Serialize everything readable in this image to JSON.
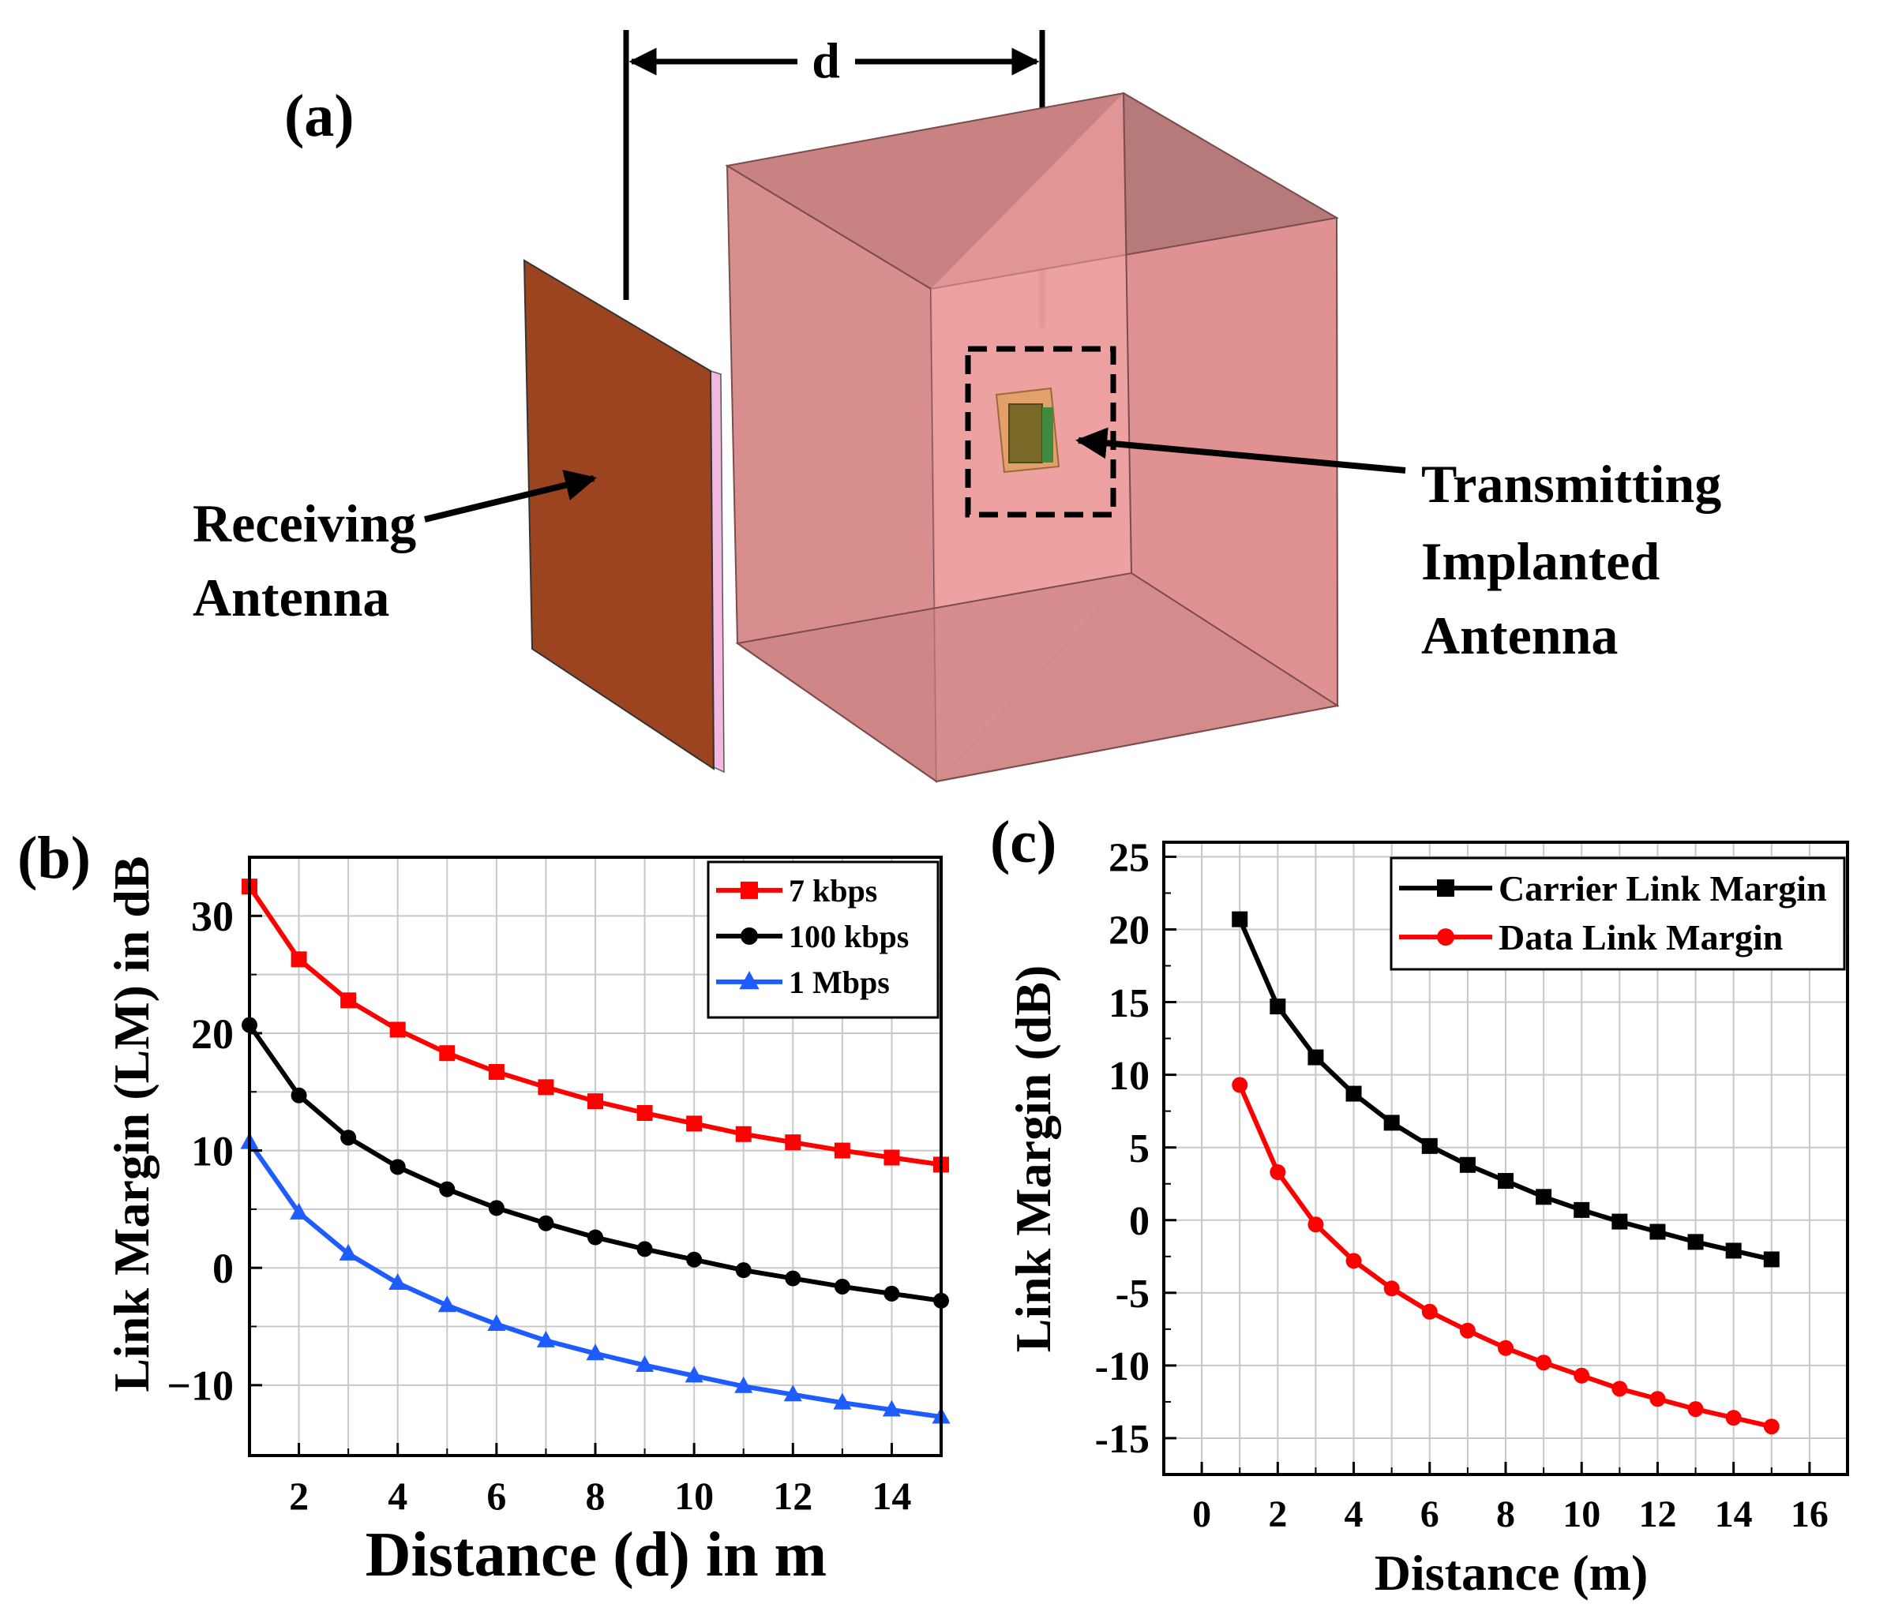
{
  "panel_a": {
    "label": "(a)",
    "distance_label": "d",
    "receiving_label_line1": "Receiving",
    "receiving_label_line2": "Antenna",
    "transmitting_label_line1": "Transmitting",
    "transmitting_label_line2": "Implanted",
    "transmitting_label_line3": "Antenna",
    "colors": {
      "receiver_front": "#9c4420",
      "receiver_edge": "#f2b8e0",
      "tissue_box": "#e59a9a",
      "tissue_inner": "#f4a5a5"
    }
  },
  "chart_data": [
    {
      "type": "line",
      "panel_label": "(b)",
      "title": "",
      "xlabel": "Distance (d) in m",
      "ylabel": "Link Margin (LM) in dB",
      "xlim": [
        1,
        15
      ],
      "ylim": [
        -16,
        35
      ],
      "xticks": [
        2,
        4,
        6,
        8,
        10,
        12,
        14
      ],
      "yticks": [
        -10,
        0,
        10,
        20,
        30
      ],
      "ytick_labels": [
        "−10",
        "0",
        "10",
        "20",
        "30"
      ],
      "grid": true,
      "legend_position": "top-right",
      "x": [
        1,
        2,
        3,
        4,
        5,
        6,
        7,
        8,
        9,
        10,
        11,
        12,
        13,
        14,
        15
      ],
      "series": [
        {
          "name": "7 kbps",
          "color": "#ff0000",
          "marker": "square",
          "values": [
            32.5,
            26.3,
            22.8,
            20.3,
            18.3,
            16.7,
            15.4,
            14.2,
            13.2,
            12.3,
            11.4,
            10.7,
            10.0,
            9.4,
            8.8
          ]
        },
        {
          "name": "100 kbps",
          "color": "#000000",
          "marker": "circle",
          "values": [
            20.7,
            14.7,
            11.1,
            8.6,
            6.7,
            5.1,
            3.8,
            2.6,
            1.6,
            0.7,
            -0.2,
            -0.9,
            -1.6,
            -2.2,
            -2.8
          ]
        },
        {
          "name": "1 Mbps",
          "color": "#1e5cff",
          "marker": "triangle",
          "values": [
            10.7,
            4.7,
            1.2,
            -1.3,
            -3.2,
            -4.8,
            -6.2,
            -7.3,
            -8.3,
            -9.2,
            -10.1,
            -10.8,
            -11.5,
            -12.1,
            -12.7
          ]
        }
      ]
    },
    {
      "type": "line",
      "panel_label": "(c)",
      "title": "",
      "xlabel": "Distance (m)",
      "ylabel": "Link Margin (dB)",
      "xlim": [
        -1,
        17
      ],
      "ylim": [
        -17.5,
        26
      ],
      "xticks": [
        0,
        2,
        4,
        6,
        8,
        10,
        12,
        14,
        16
      ],
      "yticks": [
        -15,
        -10,
        -5,
        0,
        5,
        10,
        15,
        20,
        25
      ],
      "ytick_labels": [
        "-15",
        "-10",
        "-5",
        "0",
        "5",
        "10",
        "15",
        "20",
        "25"
      ],
      "grid": true,
      "legend_position": "top-right",
      "x": [
        1,
        2,
        3,
        4,
        5,
        6,
        7,
        8,
        9,
        10,
        11,
        12,
        13,
        14,
        15
      ],
      "series": [
        {
          "name": "Carrier Link Margin",
          "color": "#000000",
          "marker": "square",
          "values": [
            20.7,
            14.7,
            11.2,
            8.7,
            6.7,
            5.1,
            3.8,
            2.7,
            1.6,
            0.7,
            -0.1,
            -0.8,
            -1.5,
            -2.1,
            -2.7
          ]
        },
        {
          "name": "Data Link Margin",
          "color": "#ff0000",
          "marker": "circle",
          "values": [
            9.3,
            3.3,
            -0.3,
            -2.8,
            -4.7,
            -6.3,
            -7.6,
            -8.8,
            -9.8,
            -10.7,
            -11.6,
            -12.3,
            -13.0,
            -13.6,
            -14.2
          ]
        }
      ]
    }
  ]
}
